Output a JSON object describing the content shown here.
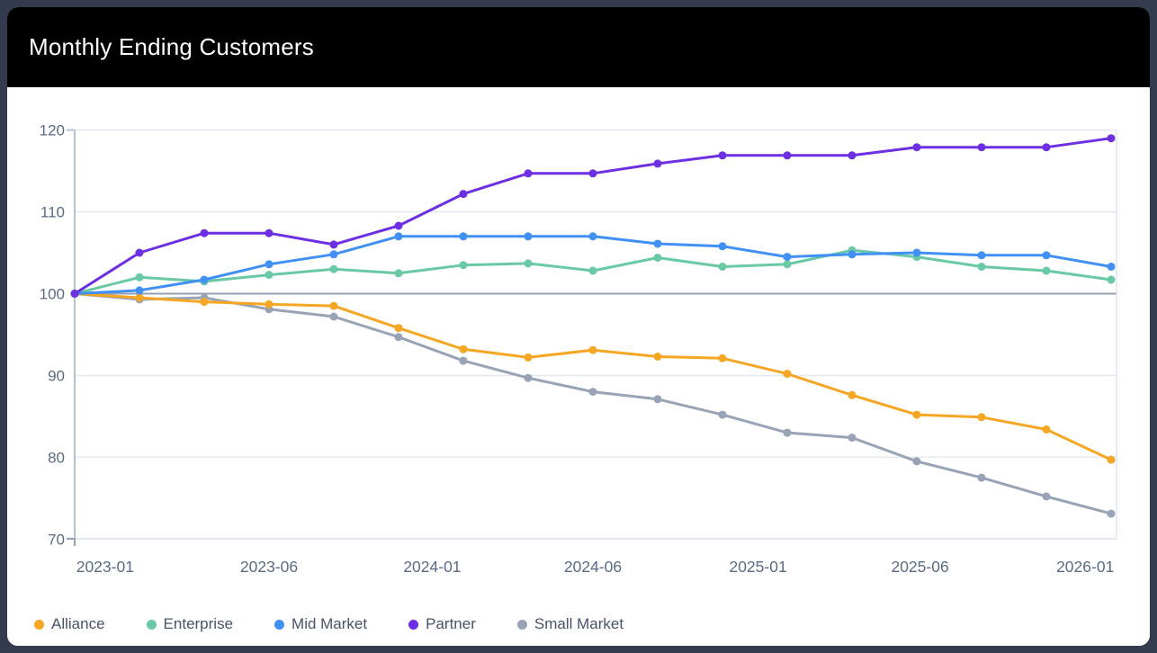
{
  "header": {
    "title": "Monthly Ending Customers"
  },
  "colors": {
    "page_background": "#343B4E",
    "header_background": "#000000",
    "card_background": "#FFFFFF",
    "title_text": "#FFFFFF",
    "axis_label_text": "#5A6B85",
    "legend_text": "#47536B",
    "gridline": "#E4E8F2",
    "reference_line": "#94A0B4",
    "y_axis_line": "#B7C1D4",
    "plot_right_border": "#DDE3EE"
  },
  "chart_data": {
    "type": "line",
    "title": "Monthly Ending Customers",
    "n_points": 17,
    "x_tick_labels": [
      "2023-01",
      "2023-06",
      "2024-01",
      "2024-06",
      "2025-01",
      "2025-06",
      "2026-01"
    ],
    "x_tick_positions": [
      0.47,
      3,
      5.52,
      8,
      10.55,
      13.05,
      15.6
    ],
    "y_ticks": [
      70,
      80,
      90,
      100,
      110,
      120
    ],
    "ylim": [
      70,
      120
    ],
    "reference_line_y": 100,
    "grid": true,
    "legend_position": "bottom",
    "series": [
      {
        "name": "Alliance",
        "color": "#F5A623",
        "values": [
          100,
          99.5,
          99,
          98.7,
          98.5,
          95.8,
          93.2,
          92.2,
          93.1,
          92.3,
          92.1,
          90.2,
          87.6,
          85.2,
          84.9,
          83.4,
          79.7
        ]
      },
      {
        "name": "Enterprise",
        "color": "#68C9A4",
        "values": [
          100,
          102,
          101.5,
          102.3,
          103,
          102.5,
          103.5,
          103.7,
          102.8,
          104.4,
          103.3,
          103.6,
          105.3,
          104.5,
          103.3,
          102.8,
          101.7
        ]
      },
      {
        "name": "Mid Market",
        "color": "#4090F5",
        "values": [
          100,
          100.4,
          101.7,
          103.6,
          104.8,
          107,
          107,
          107,
          107,
          106.1,
          105.8,
          104.5,
          104.8,
          105,
          104.7,
          104.7,
          103.3
        ]
      },
      {
        "name": "Partner",
        "color": "#6D2FE3",
        "values": [
          100,
          105,
          107.4,
          107.4,
          106,
          108.3,
          112.2,
          114.7,
          114.7,
          115.9,
          116.9,
          116.9,
          116.9,
          117.9,
          117.9,
          117.9,
          119
        ]
      },
      {
        "name": "Small Market",
        "color": "#98A3B6",
        "values": [
          100,
          99.3,
          99.5,
          98.1,
          97.2,
          94.7,
          91.8,
          89.7,
          88,
          87.1,
          85.2,
          83,
          82.4,
          79.5,
          77.5,
          75.2,
          73.1
        ]
      }
    ],
    "draw_order": [
      "Small Market",
      "Enterprise",
      "Alliance",
      "Mid Market",
      "Partner"
    ]
  }
}
